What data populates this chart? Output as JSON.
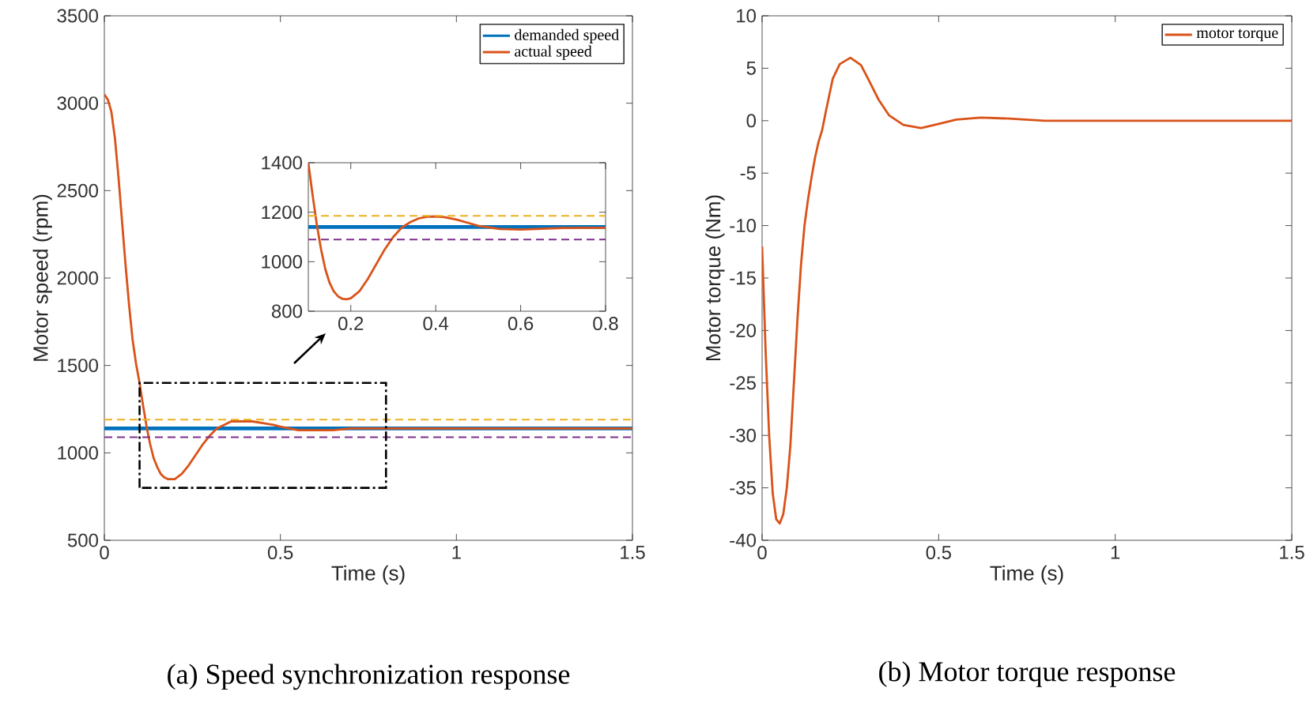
{
  "chart_data": [
    {
      "type": "line",
      "xlabel": "Time (s)",
      "ylabel": "Motor speed (rpm)",
      "xlim": [
        0,
        1.5
      ],
      "ylim": [
        500,
        3500
      ],
      "xticks": [
        0,
        0.5,
        1,
        1.5
      ],
      "yticks": [
        500,
        1000,
        1500,
        2000,
        2500,
        3000,
        3500
      ],
      "grid": false,
      "legend": "top right",
      "marker": "none",
      "line_style": "solid",
      "series": [
        {
          "name": "demanded speed",
          "color": "#0072bd",
          "x": [
            0,
            1.5
          ],
          "values": [
            1140,
            1140
          ]
        },
        {
          "name": "actual speed",
          "color": "#d95319",
          "x": [
            0,
            0.01,
            0.02,
            0.03,
            0.04,
            0.05,
            0.06,
            0.07,
            0.08,
            0.09,
            0.1,
            0.11,
            0.12,
            0.13,
            0.14,
            0.15,
            0.16,
            0.17,
            0.18,
            0.19,
            0.2,
            0.22,
            0.24,
            0.26,
            0.28,
            0.3,
            0.32,
            0.34,
            0.36,
            0.38,
            0.4,
            0.42,
            0.45,
            0.48,
            0.5,
            0.55,
            0.6,
            0.65,
            0.7,
            0.8,
            1.0,
            1.5
          ],
          "values": [
            3050,
            3020,
            2950,
            2800,
            2580,
            2330,
            2080,
            1850,
            1650,
            1510,
            1400,
            1270,
            1150,
            1050,
            970,
            920,
            880,
            860,
            850,
            850,
            850,
            880,
            930,
            990,
            1050,
            1100,
            1140,
            1160,
            1180,
            1180,
            1180,
            1180,
            1170,
            1160,
            1150,
            1130,
            1130,
            1130,
            1140,
            1140,
            1140,
            1140
          ]
        }
      ],
      "ref_lines": [
        {
          "axis": "y",
          "value": 1190,
          "color": "#edb120",
          "line_style": "dashed"
        },
        {
          "axis": "y",
          "value": 1090,
          "color": "#7e2f8e",
          "line_style": "dashed"
        }
      ],
      "annotations": [
        "(a) Speed synchronization response"
      ]
    },
    {
      "type": "line",
      "xlim": [
        0.1,
        0.8
      ],
      "ylim": [
        800,
        1400
      ],
      "xticks": [
        0.2,
        0.4,
        0.6,
        0.8
      ],
      "yticks": [
        800,
        1000,
        1200,
        1400
      ],
      "grid": false,
      "marker": "none",
      "line_style": "solid",
      "series": [
        {
          "color": "#0072bd",
          "x": [
            0.1,
            0.8
          ],
          "values": [
            1140,
            1140
          ]
        },
        {
          "color": "#d95319",
          "x": [
            0.1,
            0.11,
            0.12,
            0.13,
            0.14,
            0.15,
            0.16,
            0.17,
            0.18,
            0.19,
            0.2,
            0.22,
            0.24,
            0.26,
            0.28,
            0.3,
            0.32,
            0.34,
            0.36,
            0.38,
            0.4,
            0.42,
            0.45,
            0.48,
            0.5,
            0.55,
            0.6,
            0.65,
            0.7,
            0.8
          ],
          "values": [
            1400,
            1270,
            1150,
            1050,
            970,
            915,
            880,
            860,
            850,
            848,
            852,
            880,
            930,
            990,
            1050,
            1100,
            1138,
            1160,
            1175,
            1182,
            1183,
            1180,
            1170,
            1155,
            1145,
            1132,
            1130,
            1133,
            1136,
            1137
          ]
        }
      ],
      "ref_lines": [
        {
          "axis": "y",
          "value": 1185,
          "color": "#edb120",
          "line_style": "dashed"
        },
        {
          "axis": "y",
          "value": 1090,
          "color": "#7e2f8e",
          "line_style": "dashed"
        }
      ]
    },
    {
      "type": "line",
      "xlabel": "Time (s)",
      "ylabel": "Motor torque (Nm)",
      "xlim": [
        0,
        1.5
      ],
      "ylim": [
        -40,
        10
      ],
      "xticks": [
        0,
        0.5,
        1,
        1.5
      ],
      "yticks": [
        -40,
        -35,
        -30,
        -25,
        -20,
        -15,
        -10,
        -5,
        0,
        5,
        10
      ],
      "grid": false,
      "legend": "top right",
      "marker": "none",
      "line_style": "solid",
      "series": [
        {
          "name": "motor torque",
          "color": "#d95319",
          "x": [
            0,
            0.01,
            0.02,
            0.03,
            0.04,
            0.05,
            0.06,
            0.07,
            0.08,
            0.09,
            0.1,
            0.11,
            0.12,
            0.13,
            0.14,
            0.15,
            0.16,
            0.17,
            0.18,
            0.2,
            0.22,
            0.25,
            0.28,
            0.3,
            0.33,
            0.36,
            0.4,
            0.45,
            0.5,
            0.55,
            0.62,
            0.7,
            0.8,
            1.0,
            1.5
          ],
          "values": [
            -12,
            -22,
            -30,
            -35.5,
            -38,
            -38.4,
            -37.5,
            -35,
            -31,
            -25,
            -19,
            -13.8,
            -10,
            -7.5,
            -5.4,
            -3.5,
            -2,
            -0.9,
            0.8,
            4,
            5.4,
            6,
            5.3,
            4,
            2,
            0.5,
            -0.4,
            -0.7,
            -0.3,
            0.1,
            0.3,
            0.2,
            0,
            0,
            0
          ]
        }
      ],
      "annotations": [
        "(b) Motor torque response"
      ]
    }
  ]
}
